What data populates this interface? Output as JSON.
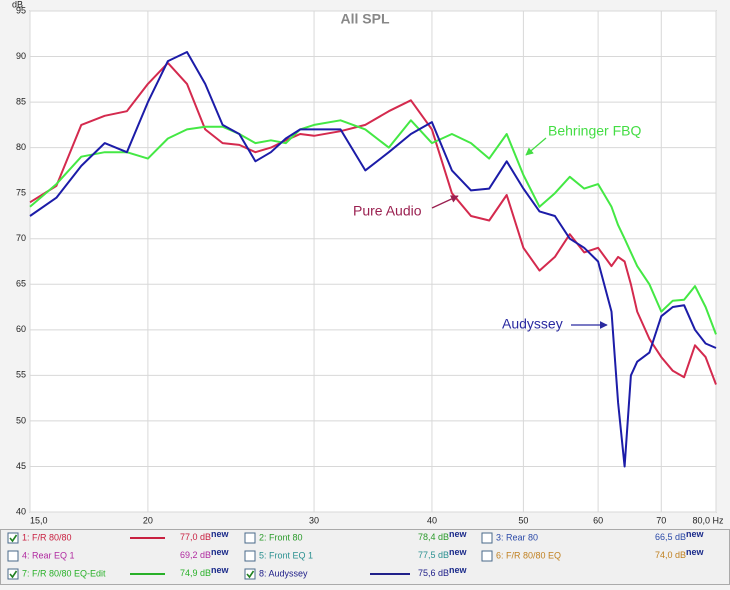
{
  "chart_data": {
    "type": "line",
    "title": "All SPL",
    "y_label": "dB",
    "log_x": true,
    "grid": true,
    "xlim": [
      15,
      80
    ],
    "ylim": [
      40,
      95
    ],
    "xticks": [
      {
        "value": 15,
        "label": "15,0"
      },
      20,
      30,
      40,
      50,
      60,
      70,
      {
        "value": 80,
        "label": "80,0 Hz"
      }
    ],
    "yticks": [
      40,
      45,
      50,
      55,
      60,
      65,
      70,
      75,
      80,
      85,
      90,
      95
    ],
    "x": [
      15,
      16,
      17,
      18,
      19,
      20,
      21,
      22,
      23,
      24,
      25,
      26,
      27,
      28,
      29,
      30,
      32,
      34,
      36,
      38,
      40,
      42,
      44,
      46,
      48,
      50,
      52,
      54,
      56,
      58,
      60,
      62,
      63,
      64,
      65,
      66,
      68,
      70,
      72,
      74,
      76,
      78,
      80
    ],
    "series": [
      {
        "color": "#d42a4e",
        "values": [
          74,
          75.8,
          82.5,
          83.5,
          84,
          87,
          89.3,
          87,
          82,
          80.5,
          80.3,
          79.5,
          80,
          80.8,
          81.5,
          81.3,
          81.8,
          82.5,
          84,
          85.2,
          82,
          75,
          72.5,
          72,
          74.8,
          69,
          66.5,
          68,
          70.5,
          68.5,
          69,
          67,
          68,
          67.5,
          65,
          62,
          59,
          57,
          55.5,
          54.8,
          58.3,
          57,
          54
        ]
      },
      {
        "color": "#44e844",
        "values": [
          73.5,
          76,
          79,
          79.5,
          79.5,
          78.8,
          81,
          82,
          82.3,
          82.3,
          81.5,
          80.5,
          80.8,
          80.5,
          82,
          82.5,
          83,
          82,
          80,
          83,
          80.5,
          81.5,
          80.5,
          78.8,
          81.5,
          77,
          73.5,
          75,
          76.8,
          75.5,
          76,
          73.5,
          71.5,
          70,
          68.5,
          67,
          65,
          62,
          63.2,
          63.3,
          64.8,
          62.5,
          59.5
        ]
      },
      {
        "color": "#1c1ca8",
        "values": [
          72.5,
          74.5,
          78,
          80.5,
          79.5,
          85,
          89.5,
          90.5,
          87,
          82.5,
          81.5,
          78.5,
          79.5,
          81,
          82,
          82,
          82,
          77.5,
          79.5,
          81.5,
          82.8,
          77.5,
          75.3,
          75.5,
          78.5,
          75.5,
          73,
          72.5,
          70,
          69,
          67.5,
          62,
          52,
          45,
          55,
          56.5,
          57.5,
          61.5,
          62.5,
          62.7,
          60,
          58.5,
          58
        ]
      }
    ],
    "annotations": [
      {
        "text": "Behringer FBQ",
        "color": "#44dd44"
      },
      {
        "text": "Pure Audio",
        "color": "#9a2050"
      },
      {
        "text": "Audyssey",
        "color": "#2a2aa0"
      }
    ],
    "legend": [
      {
        "label": "1: F/R 80/80",
        "level": "77,0 dB",
        "tag": "new",
        "checked": true,
        "color": "#c82040"
      },
      {
        "label": "2: Front 80",
        "level": "78,4 dB",
        "tag": "new",
        "checked": false,
        "color": "#2a9a2a"
      },
      {
        "label": "3: Rear 80",
        "level": "66,5 dB",
        "tag": "new",
        "checked": false,
        "color": "#2b4aa8"
      },
      {
        "label": "4: Rear EQ 1",
        "level": "69,2 dB",
        "tag": "new",
        "checked": false,
        "color": "#b02aa0"
      },
      {
        "label": "5: Front EQ 1",
        "level": "77,5 dB",
        "tag": "new",
        "checked": false,
        "color": "#2a9090"
      },
      {
        "label": "6: F/R 80/80 EQ",
        "level": "74,0 dB",
        "tag": "new",
        "checked": false,
        "color": "#c08020"
      },
      {
        "label": "7: F/R 80/80 EQ-Edit",
        "level": "74,9 dB",
        "tag": "new",
        "checked": true,
        "color": "#28b028"
      },
      {
        "label": "8: Audyssey",
        "level": "75,6 dB",
        "tag": "new",
        "checked": true,
        "color": "#20208a"
      }
    ]
  }
}
